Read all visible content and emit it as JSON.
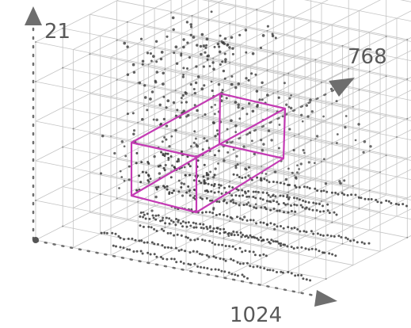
{
  "axes": {
    "vertical": {
      "label": "21"
    },
    "depth": {
      "label": "768"
    },
    "horizontal": {
      "label": "1024"
    }
  },
  "colors": {
    "grid": "#c4c4c4",
    "points": "#3a3a3a",
    "axis": "#6e6e6e",
    "axis_label": "#595959",
    "selection_box": "#c43bb4"
  }
}
